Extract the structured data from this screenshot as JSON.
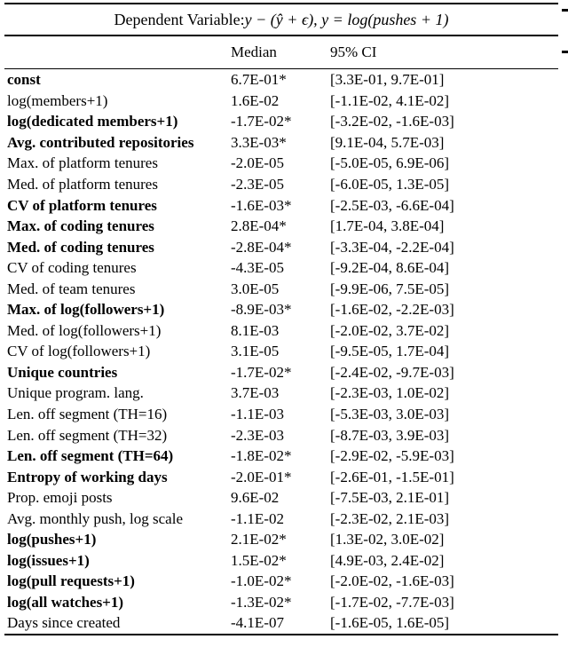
{
  "title": {
    "prefix": "Dependent Variable: ",
    "math": "y − (ŷ + ϵ), y = log(pushes + 1)"
  },
  "header": {
    "median": "Median",
    "ci": "95% CI"
  },
  "rows": [
    {
      "label": "const",
      "bold": true,
      "median": "6.7E-01*",
      "ci": "[3.3E-01, 9.7E-01]"
    },
    {
      "label": "log(members+1)",
      "bold": false,
      "median": "1.6E-02",
      "ci": "[-1.1E-02, 4.1E-02]"
    },
    {
      "label": "log(dedicated members+1)",
      "bold": true,
      "median": "-1.7E-02*",
      "ci": "[-3.2E-02, -1.6E-03]"
    },
    {
      "label": "Avg. contributed repositories",
      "bold": true,
      "median": "3.3E-03*",
      "ci": "[9.1E-04, 5.7E-03]"
    },
    {
      "label": "Max. of platform tenures",
      "bold": false,
      "median": "-2.0E-05",
      "ci": "[-5.0E-05, 6.9E-06]"
    },
    {
      "label": "Med. of platform tenures",
      "bold": false,
      "median": "-2.3E-05",
      "ci": "[-6.0E-05, 1.3E-05]"
    },
    {
      "label": "CV of platform tenures",
      "bold": true,
      "median": "-1.6E-03*",
      "ci": "[-2.5E-03, -6.6E-04]"
    },
    {
      "label": "Max. of coding tenures",
      "bold": true,
      "median": "2.8E-04*",
      "ci": "[1.7E-04, 3.8E-04]"
    },
    {
      "label": "Med. of coding tenures",
      "bold": true,
      "median": "-2.8E-04*",
      "ci": "[-3.3E-04, -2.2E-04]"
    },
    {
      "label": "CV of coding tenures",
      "bold": false,
      "median": "-4.3E-05",
      "ci": "[-9.2E-04, 8.6E-04]"
    },
    {
      "label": "Med. of team tenures",
      "bold": false,
      "median": "3.0E-05",
      "ci": "[-9.9E-06, 7.5E-05]"
    },
    {
      "label": "Max. of log(followers+1)",
      "bold": true,
      "median": "-8.9E-03*",
      "ci": "[-1.6E-02, -2.2E-03]"
    },
    {
      "label": "Med. of log(followers+1)",
      "bold": false,
      "median": "8.1E-03",
      "ci": "[-2.0E-02, 3.7E-02]"
    },
    {
      "label": "CV of log(followers+1)",
      "bold": false,
      "median": "3.1E-05",
      "ci": "[-9.5E-05, 1.7E-04]"
    },
    {
      "label": "Unique countries",
      "bold": true,
      "median": "-1.7E-02*",
      "ci": "[-2.4E-02, -9.7E-03]"
    },
    {
      "label": "Unique program. lang.",
      "bold": false,
      "median": "3.7E-03",
      "ci": "[-2.3E-03, 1.0E-02]"
    },
    {
      "label": "Len. off segment (TH=16)",
      "bold": false,
      "median": "-1.1E-03",
      "ci": "[-5.3E-03, 3.0E-03]"
    },
    {
      "label": "Len. off segment (TH=32)",
      "bold": false,
      "median": "-2.3E-03",
      "ci": "[-8.7E-03, 3.9E-03]"
    },
    {
      "label": "Len. off segment (TH=64)",
      "bold": true,
      "median": "-1.8E-02*",
      "ci": "[-2.9E-02, -5.9E-03]"
    },
    {
      "label": "Entropy of working days",
      "bold": true,
      "median": "-2.0E-01*",
      "ci": "[-2.6E-01, -1.5E-01]"
    },
    {
      "label": "Prop. emoji posts",
      "bold": false,
      "median": "9.6E-02",
      "ci": "[-7.5E-03, 2.1E-01]"
    },
    {
      "label": "Avg. monthly push, log scale",
      "bold": false,
      "median": "-1.1E-02",
      "ci": "[-2.3E-02, 2.1E-03]"
    },
    {
      "label": "log(pushes+1)",
      "bold": true,
      "median": "2.1E-02*",
      "ci": "[1.3E-02, 3.0E-02]"
    },
    {
      "label": "log(issues+1)",
      "bold": true,
      "median": "1.5E-02*",
      "ci": "[4.9E-03, 2.4E-02]"
    },
    {
      "label": "log(pull requests+1)",
      "bold": true,
      "median": "-1.0E-02*",
      "ci": "[-2.0E-02, -1.6E-03]"
    },
    {
      "label": "log(all watches+1)",
      "bold": true,
      "median": "-1.3E-02*",
      "ci": "[-1.7E-02, -7.7E-03]"
    },
    {
      "label": "Days since created",
      "bold": false,
      "median": "-4.1E-07",
      "ci": "[-1.6E-05, 1.6E-05]"
    }
  ]
}
